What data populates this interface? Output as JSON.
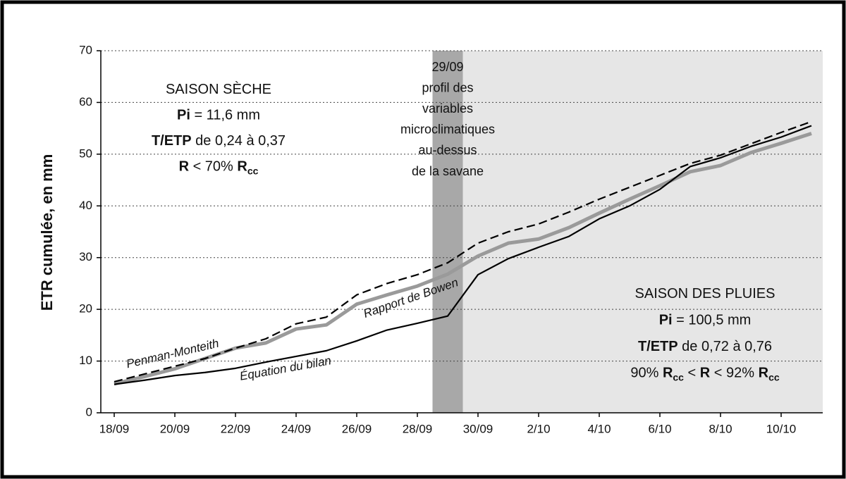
{
  "chart_data": {
    "type": "line",
    "y_label": "ETR cumulée, en mm",
    "categories": [
      "18/09",
      null,
      "20/09",
      null,
      "22/09",
      null,
      "24/09",
      null,
      "26/09",
      null,
      "28/09",
      null,
      "30/09",
      null,
      "2/10",
      null,
      "4/10",
      null,
      "6/10",
      null,
      "8/10",
      null,
      "10/10",
      null
    ],
    "ylim": [
      0,
      70
    ],
    "yticks": [
      0,
      10,
      20,
      30,
      40,
      50,
      60,
      70
    ],
    "grid": true,
    "series": [
      {
        "name": "Rapport de Bowen",
        "color": "#9a9a9a",
        "style": "thick",
        "values": [
          5.6,
          7,
          8.5,
          10.5,
          12.5,
          13.5,
          16.2,
          17,
          21,
          22.8,
          24.5,
          26.8,
          30.3,
          32.8,
          33.6,
          35.8,
          38.6,
          41.3,
          43.9,
          46.6,
          47.8,
          50.3,
          52.1,
          54
        ]
      },
      {
        "name": "Penman-Monteith",
        "color": "#000000",
        "style": "dashed",
        "values": [
          6,
          7.5,
          9,
          10.5,
          12.5,
          14.3,
          17.2,
          18.5,
          22.8,
          25,
          26.7,
          29,
          32.8,
          35,
          36.5,
          38.8,
          41.3,
          43.6,
          45.9,
          48.2,
          49.8,
          52,
          54.2,
          56.3
        ]
      },
      {
        "name": "Équation du bilan",
        "color": "#000000",
        "style": "solid",
        "values": [
          5.5,
          6.3,
          7.2,
          7.8,
          8.6,
          9.8,
          10.9,
          12,
          13.9,
          16,
          17.3,
          18.7,
          26.7,
          29.8,
          32,
          34.1,
          37.5,
          40,
          43.2,
          47.6,
          49.3,
          51.5,
          53.3,
          55.5
        ]
      }
    ],
    "band_note": [
      "29/09",
      "profil des",
      "variables",
      "microclimatiques",
      "au-dessus",
      "de la savane"
    ],
    "dry_season": [
      [
        {
          "text": "SAISON SÈCHE"
        }
      ],
      [
        {
          "text": "Pi",
          "bold": true
        },
        {
          "text": " = 11,6 mm"
        }
      ],
      [
        {
          "text": "T/ETP",
          "bold": true
        },
        {
          "text": " de 0,24 à 0,37"
        }
      ],
      [
        {
          "text": "R",
          "bold": true
        },
        {
          "text": " < 70% "
        },
        {
          "text": "R",
          "bold": true
        },
        {
          "text": "cc",
          "bold": true,
          "sub": true
        }
      ]
    ],
    "rainy_season": [
      [
        {
          "text": "SAISON DES PLUIES"
        }
      ],
      [
        {
          "text": "Pi",
          "bold": true
        },
        {
          "text": " = 100,5 mm"
        }
      ],
      [
        {
          "text": "T/ETP",
          "bold": true
        },
        {
          "text": " de 0,72 à 0,76"
        }
      ],
      [
        {
          "text": "90% "
        },
        {
          "text": "R",
          "bold": true
        },
        {
          "text": "cc",
          "bold": true,
          "sub": true
        },
        {
          "text": " < "
        },
        {
          "text": "R",
          "bold": true
        },
        {
          "text": " < 92% "
        },
        {
          "text": "R",
          "bold": true
        },
        {
          "text": "cc",
          "bold": true,
          "sub": true
        }
      ]
    ]
  }
}
